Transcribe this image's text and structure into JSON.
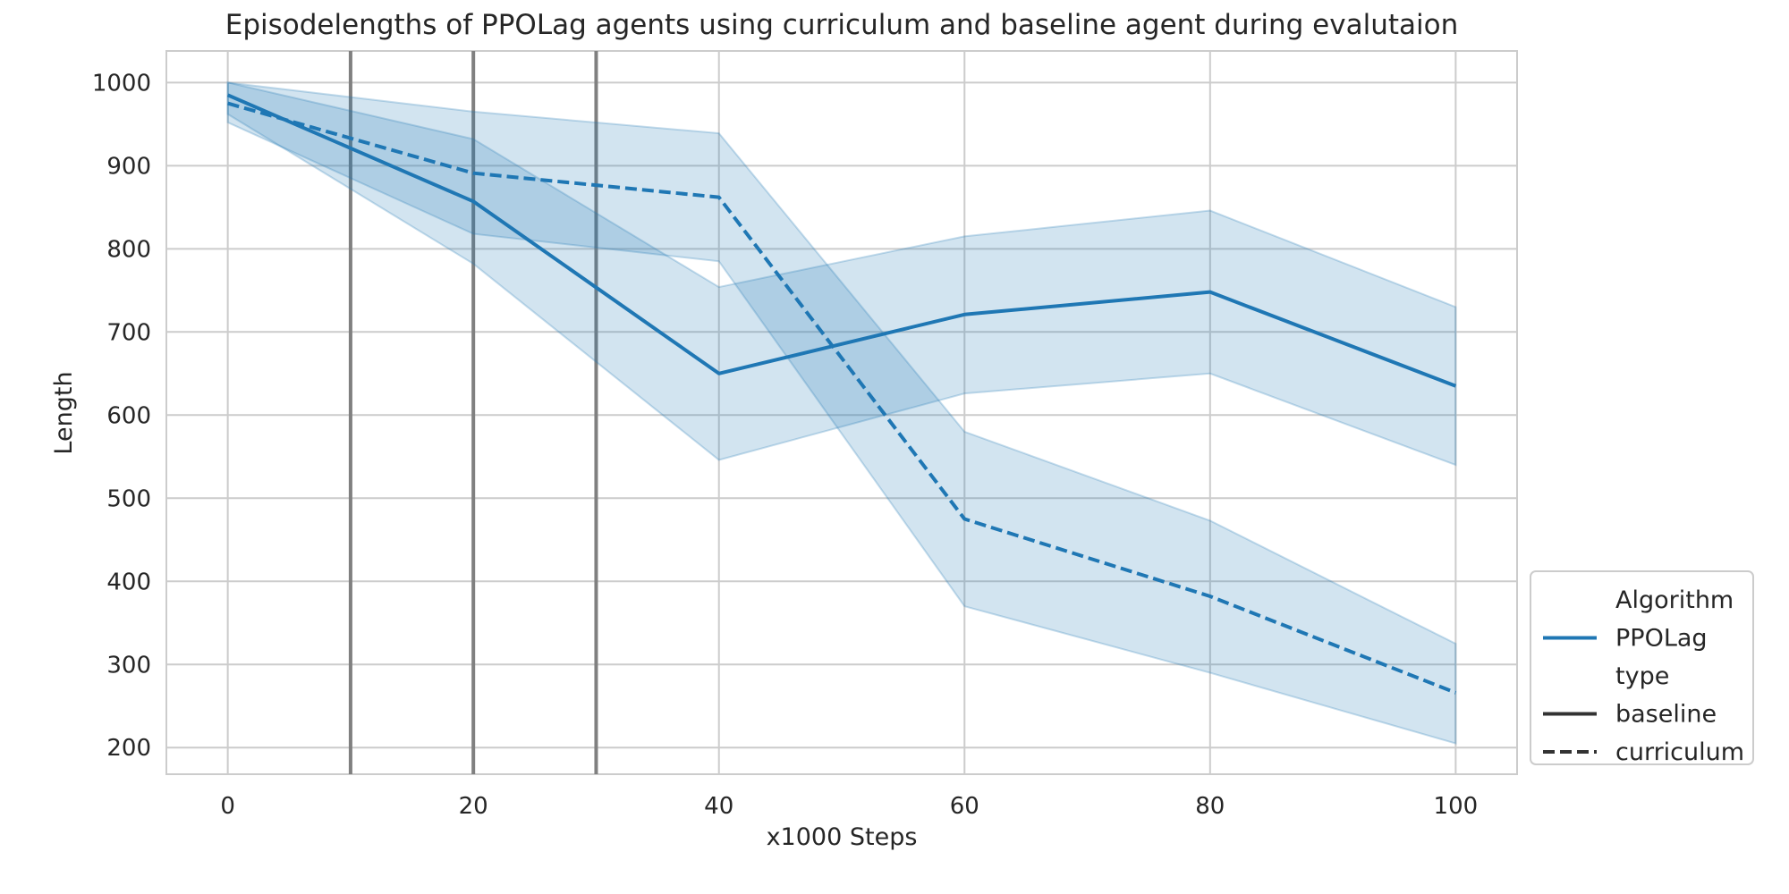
{
  "chart_data": {
    "type": "line",
    "title": "Episodelengths of PPOLag agents using curriculum and baseline agent during evalutaion",
    "xlabel": "x1000 Steps",
    "ylabel": "Length",
    "xlim": [
      -5,
      105
    ],
    "ylim": [
      168,
      1038
    ],
    "xticks": [
      0,
      20,
      40,
      60,
      80,
      100
    ],
    "yticks": [
      200,
      300,
      400,
      500,
      600,
      700,
      800,
      900,
      1000
    ],
    "grid": true,
    "legend_position": "lower-right-outside",
    "vertical_lines": [
      10,
      20,
      30
    ],
    "x": [
      0,
      20,
      40,
      60,
      80,
      100
    ],
    "series": [
      {
        "key": "baseline",
        "style": "solid",
        "color": "#1f77b4",
        "values": [
          985,
          857,
          650,
          721,
          748,
          635
        ],
        "ci_lower": [
          962,
          782,
          546,
          626,
          650,
          540
        ],
        "ci_upper": [
          1000,
          932,
          754,
          815,
          846,
          730
        ]
      },
      {
        "key": "curriculum",
        "style": "dashed",
        "color": "#1f77b4",
        "values": [
          975,
          891,
          862,
          475,
          382,
          266
        ],
        "ci_lower": [
          952,
          818,
          785,
          370,
          290,
          205
        ],
        "ci_upper": [
          1000,
          965,
          939,
          580,
          473,
          325
        ]
      }
    ],
    "legend": {
      "entries": [
        {
          "label": "Algorithm",
          "marker": "none"
        },
        {
          "label": "PPOLag",
          "marker": "line-blue"
        },
        {
          "label": "type",
          "marker": "none"
        },
        {
          "label": "baseline",
          "marker": "line-solid-dark"
        },
        {
          "label": "curriculum",
          "marker": "line-dashed-dark"
        }
      ]
    },
    "colors": {
      "line": "#1f77b4",
      "band": "#1f77b4",
      "grid": "#cccccc",
      "vline": "#808080",
      "legend_dark": "#333333"
    }
  }
}
